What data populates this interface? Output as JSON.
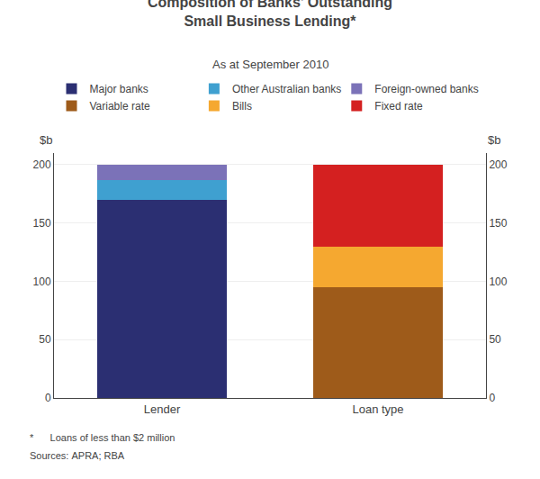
{
  "chart_data": {
    "type": "bar",
    "stacked": true,
    "title": "Composition of Banks’ Outstanding\nSmall Business Lending*",
    "subtitle": "As at September 2010",
    "annotations": [
      "*      Loans of less than $2 million",
      "Sources: APRA; RBA"
    ],
    "ylabel": "$b",
    "y2label": "$b",
    "categories": [
      "Lender",
      "Loan type"
    ],
    "series": [
      {
        "name": "Major banks",
        "color": "#2b2f72",
        "values": [
          170,
          null
        ]
      },
      {
        "name": "Other Australian banks",
        "color": "#3fa0d0",
        "values": [
          17,
          null
        ]
      },
      {
        "name": "Foreign-owned banks",
        "color": "#7b72b8",
        "values": [
          13,
          null
        ]
      },
      {
        "name": "Variable rate",
        "color": "#9e5b1a",
        "values": [
          null,
          95
        ]
      },
      {
        "name": "Bills",
        "color": "#f5a830",
        "values": [
          null,
          35
        ]
      },
      {
        "name": "Fixed rate",
        "color": "#d42020",
        "values": [
          null,
          70
        ]
      }
    ],
    "ylim": [
      0,
      210
    ],
    "yticks": [
      0,
      50,
      100,
      150,
      200
    ],
    "y2lim": [
      0,
      210
    ],
    "y2ticks": [
      0,
      50,
      100,
      150,
      200
    ],
    "grid": true,
    "legend": "top"
  }
}
